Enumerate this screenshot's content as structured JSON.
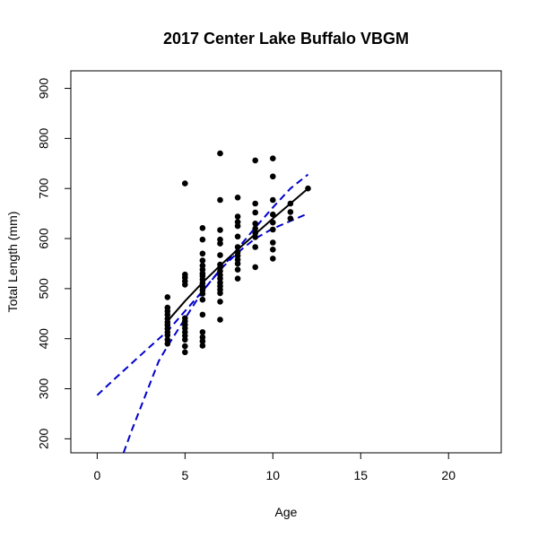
{
  "chart_data": {
    "type": "scatter",
    "title": "2017 Center Lake Buffalo VBGM",
    "xlabel": "Age",
    "ylabel": "Total Length (mm)",
    "xlim": [
      -1.5,
      23
    ],
    "ylim": [
      172,
      935
    ],
    "xticks": [
      0,
      5,
      10,
      15,
      20
    ],
    "yticks": [
      200,
      300,
      400,
      500,
      600,
      700,
      800,
      900
    ],
    "grid": false,
    "colors": {
      "points": "#000000",
      "fit": "#000000",
      "ci": "#0000cc"
    },
    "points": [
      [
        4,
        483
      ],
      [
        4,
        462
      ],
      [
        4,
        455
      ],
      [
        4,
        448
      ],
      [
        4,
        440
      ],
      [
        4,
        433
      ],
      [
        4,
        427
      ],
      [
        4,
        420
      ],
      [
        4,
        413
      ],
      [
        4,
        407
      ],
      [
        4,
        398
      ],
      [
        4,
        390
      ],
      [
        5,
        710
      ],
      [
        5,
        528
      ],
      [
        5,
        522
      ],
      [
        5,
        515
      ],
      [
        5,
        508
      ],
      [
        5,
        441
      ],
      [
        5,
        435
      ],
      [
        5,
        428
      ],
      [
        5,
        421
      ],
      [
        5,
        413
      ],
      [
        5,
        406
      ],
      [
        5,
        398
      ],
      [
        5,
        385
      ],
      [
        5,
        373
      ],
      [
        6,
        621
      ],
      [
        6,
        598
      ],
      [
        6,
        570
      ],
      [
        6,
        556
      ],
      [
        6,
        546
      ],
      [
        6,
        538
      ],
      [
        6,
        530
      ],
      [
        6,
        525
      ],
      [
        6,
        518
      ],
      [
        6,
        511
      ],
      [
        6,
        504
      ],
      [
        6,
        497
      ],
      [
        6,
        490
      ],
      [
        6,
        478
      ],
      [
        6,
        448
      ],
      [
        6,
        413
      ],
      [
        6,
        403
      ],
      [
        6,
        395
      ],
      [
        6,
        386
      ],
      [
        7,
        770
      ],
      [
        7,
        677
      ],
      [
        7,
        617
      ],
      [
        7,
        598
      ],
      [
        7,
        590
      ],
      [
        7,
        567
      ],
      [
        7,
        548
      ],
      [
        7,
        542
      ],
      [
        7,
        535
      ],
      [
        7,
        527
      ],
      [
        7,
        520
      ],
      [
        7,
        512
      ],
      [
        7,
        505
      ],
      [
        7,
        498
      ],
      [
        7,
        491
      ],
      [
        7,
        474
      ],
      [
        7,
        438
      ],
      [
        8,
        682
      ],
      [
        8,
        644
      ],
      [
        8,
        633
      ],
      [
        8,
        625
      ],
      [
        8,
        604
      ],
      [
        8,
        583
      ],
      [
        8,
        573
      ],
      [
        8,
        566
      ],
      [
        8,
        558
      ],
      [
        8,
        550
      ],
      [
        8,
        538
      ],
      [
        8,
        520
      ],
      [
        9,
        756
      ],
      [
        9,
        670
      ],
      [
        9,
        652
      ],
      [
        9,
        630
      ],
      [
        9,
        620
      ],
      [
        9,
        611
      ],
      [
        9,
        603
      ],
      [
        9,
        583
      ],
      [
        9,
        543
      ],
      [
        10,
        760
      ],
      [
        10,
        724
      ],
      [
        10,
        677
      ],
      [
        10,
        648
      ],
      [
        10,
        632
      ],
      [
        10,
        618
      ],
      [
        10,
        592
      ],
      [
        10,
        578
      ],
      [
        10,
        560
      ],
      [
        11,
        670
      ],
      [
        11,
        653
      ],
      [
        11,
        640
      ],
      [
        12,
        700
      ]
    ],
    "fit_line": {
      "x": [
        4,
        5,
        6,
        7,
        8,
        9,
        10,
        11,
        12
      ],
      "y": [
        435,
        475,
        512,
        546,
        578,
        609,
        640,
        670,
        700
      ]
    },
    "ci_upper": {
      "x": [
        0,
        1,
        2,
        3,
        4,
        5,
        6,
        7,
        8,
        9,
        10,
        11,
        12
      ],
      "y": [
        287,
        320,
        352,
        384,
        415,
        455,
        495,
        537,
        580,
        622,
        662,
        700,
        728
      ]
    },
    "ci_lower": {
      "x": [
        1.5,
        2,
        2.5,
        3,
        3.5,
        4,
        5,
        6,
        7,
        8,
        9,
        10,
        11,
        12
      ],
      "y": [
        172,
        220,
        265,
        310,
        355,
        385,
        440,
        495,
        538,
        572,
        600,
        620,
        635,
        650
      ]
    }
  }
}
